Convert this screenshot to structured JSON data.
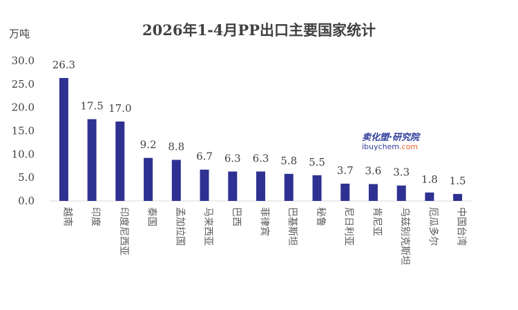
{
  "chart_data": {
    "type": "bar",
    "title": "2026年1-4月PP出口主要国家统计",
    "ylabel": "万吨",
    "xlabel": "",
    "ylim": [
      0,
      30
    ],
    "yticks": [
      "0.0",
      "5.0",
      "10.0",
      "15.0",
      "20.0",
      "25.0",
      "30.0"
    ],
    "categories": [
      "越南",
      "印度",
      "印度尼西亚",
      "泰国",
      "孟加拉国",
      "马来西亚",
      "巴西",
      "菲律宾",
      "巴基斯坦",
      "秘鲁",
      "尼日利亚",
      "肯尼亚",
      "乌兹别克斯坦",
      "厄瓜多尔",
      "中国台湾"
    ],
    "values": [
      26.3,
      17.5,
      17.0,
      9.2,
      8.8,
      6.7,
      6.3,
      6.3,
      5.8,
      5.5,
      3.7,
      3.6,
      3.3,
      1.8,
      1.5
    ],
    "value_labels": [
      "26.3",
      "17.5",
      "17.0",
      "9.2",
      "8.8",
      "6.7",
      "6.3",
      "6.3",
      "5.8",
      "5.5",
      "3.7",
      "3.6",
      "3.3",
      "1.8",
      "1.5"
    ],
    "grid": false,
    "legend": "none",
    "bar_color": "#2e3192"
  },
  "watermark": {
    "cn": "卖化塑·研究院",
    "en_prefix": "ibuychem",
    "en_suffix": ".com"
  }
}
